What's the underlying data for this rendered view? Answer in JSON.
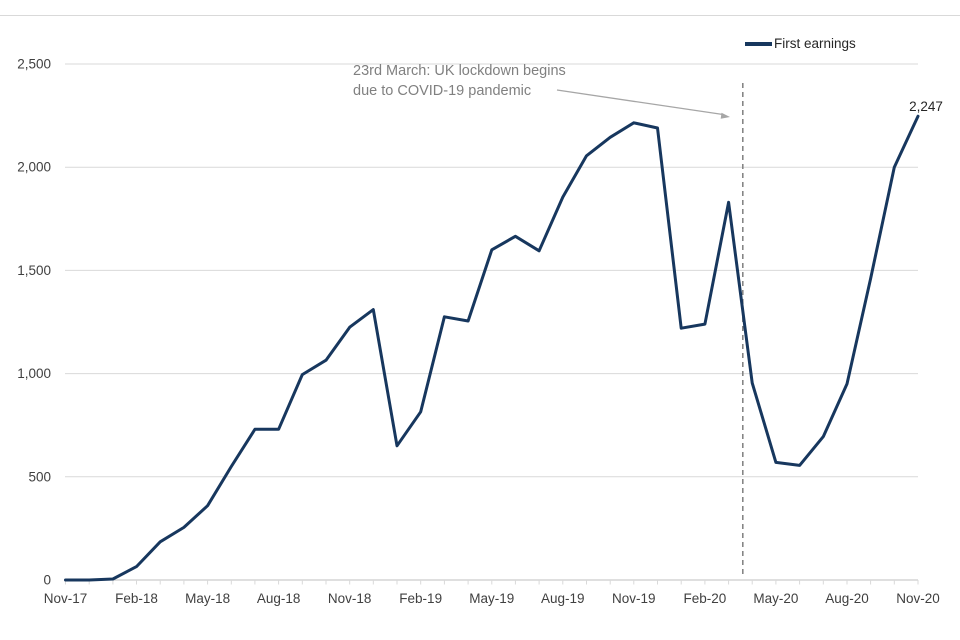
{
  "legend": {
    "label": "First earnings"
  },
  "annotation": {
    "line1": "23rd March: UK lockdown begins",
    "line2": "due to COVID-19 pandemic"
  },
  "colors": {
    "line": "#17375e",
    "grid": "#d9d9d9",
    "axis": "#bfbfbf",
    "tick": "#d9d9d9",
    "axis_label": "#404040",
    "annotation_text": "#808080",
    "arrow": "#a6a6a6",
    "reference_line": "#7f7f7f",
    "legend_text": "#262626",
    "end_label": "#262626",
    "top_border": "#d9d9d9",
    "background": "#ffffff"
  },
  "chart_data": {
    "type": "line",
    "title": "",
    "xlabel": "",
    "ylabel": "",
    "grid": "horizontal",
    "legend_position": "top-right",
    "ylim": [
      0,
      2500
    ],
    "y_ticks": [
      0,
      500,
      1000,
      1500,
      2000,
      2500
    ],
    "y_tick_labels": [
      "0",
      "500",
      "1,000",
      "1,500",
      "2,000",
      "2,500"
    ],
    "x": [
      "Nov-17",
      "Dec-17",
      "Jan-18",
      "Feb-18",
      "Mar-18",
      "Apr-18",
      "May-18",
      "Jun-18",
      "Jul-18",
      "Aug-18",
      "Sep-18",
      "Oct-18",
      "Nov-18",
      "Dec-18",
      "Jan-19",
      "Feb-19",
      "Mar-19",
      "Apr-19",
      "May-19",
      "Jun-19",
      "Jul-19",
      "Aug-19",
      "Sep-19",
      "Oct-19",
      "Nov-19",
      "Dec-19",
      "Jan-20",
      "Feb-20",
      "Mar-20",
      "Apr-20",
      "May-20",
      "Jun-20",
      "Jul-20",
      "Aug-20",
      "Sep-20",
      "Oct-20",
      "Nov-20"
    ],
    "x_axis_tick_labels": [
      "Nov-17",
      "Feb-18",
      "May-18",
      "Aug-18",
      "Nov-18",
      "Feb-19",
      "May-19",
      "Aug-19",
      "Nov-19",
      "Feb-20",
      "May-20",
      "Aug-20",
      "Nov-20"
    ],
    "series": [
      {
        "name": "First earnings",
        "values": [
          0,
          0,
          5,
          65,
          185,
          255,
          360,
          550,
          730,
          730,
          995,
          1065,
          1225,
          1310,
          650,
          815,
          1275,
          1255,
          1600,
          1665,
          1595,
          1855,
          2055,
          2145,
          2215,
          2190,
          1220,
          1240,
          1830,
          955,
          570,
          555,
          695,
          950,
          1460,
          2000,
          2247
        ]
      }
    ],
    "end_label": "2,247",
    "reference_line": {
      "style": "dashed",
      "between": [
        "Mar-20",
        "Apr-20"
      ]
    },
    "annotations": [
      "23rd March: UK lockdown begins due to COVID-19 pandemic"
    ]
  }
}
